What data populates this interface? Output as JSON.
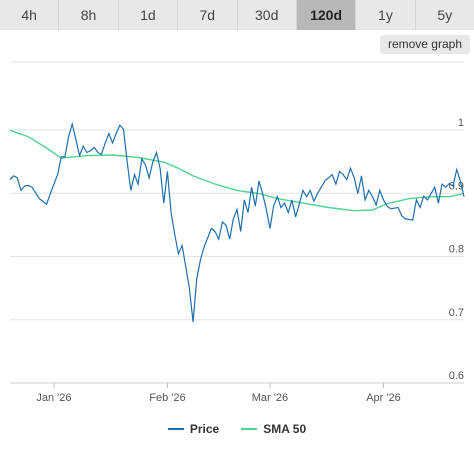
{
  "range_tabs": [
    {
      "label": "4h",
      "active": false
    },
    {
      "label": "8h",
      "active": false
    },
    {
      "label": "1d",
      "active": false
    },
    {
      "label": "7d",
      "active": false
    },
    {
      "label": "30d",
      "active": false
    },
    {
      "label": "120d",
      "active": true
    },
    {
      "label": "1y",
      "active": false
    },
    {
      "label": "5y",
      "active": false
    }
  ],
  "remove_graph_label": "remove graph",
  "colors": {
    "price": "#1f6fae",
    "sma": "#4fd38f",
    "grid": "#e3e3e3",
    "active_tab": "#b8b8b8",
    "tab": "#e8e8e8"
  },
  "legend": [
    {
      "label": "Price",
      "color": "#1f6fae"
    },
    {
      "label": "SMA 50",
      "color": "#4fd38f"
    }
  ],
  "chart_data": {
    "type": "line",
    "title": "",
    "xlabel": "",
    "ylabel": "",
    "x_domain": [
      "2025-12-20",
      "2026-04-23"
    ],
    "ylim": [
      0.6,
      1.0
    ],
    "y_ticks": [
      1.0,
      0.9,
      0.8,
      0.7,
      0.6
    ],
    "y_tick_labels": [
      "1",
      "0.9",
      "0.8",
      "0.7",
      "0.6"
    ],
    "x_ticks": [
      {
        "date": "2026-01-01",
        "label": "Jan '26"
      },
      {
        "date": "2026-02-01",
        "label": "Feb '26"
      },
      {
        "date": "2026-03-01",
        "label": "Mar '26"
      },
      {
        "date": "2026-04-01",
        "label": "Apr '26"
      }
    ],
    "grid": true,
    "legend_position": "bottom",
    "series": [
      {
        "name": "Price",
        "points": [
          [
            "2025-12-20",
            0.912
          ],
          [
            "2025-12-21",
            0.918
          ],
          [
            "2025-12-22",
            0.915
          ],
          [
            "2025-12-23",
            0.895
          ],
          [
            "2025-12-24",
            0.902
          ],
          [
            "2025-12-25",
            0.903
          ],
          [
            "2025-12-26",
            0.9
          ],
          [
            "2025-12-28",
            0.882
          ],
          [
            "2025-12-30",
            0.873
          ],
          [
            "2025-12-31",
            0.89
          ],
          [
            "2026-01-02",
            0.92
          ],
          [
            "2026-01-03",
            0.948
          ],
          [
            "2026-01-04",
            0.948
          ],
          [
            "2026-01-05",
            0.98
          ],
          [
            "2026-01-06",
            1.0
          ],
          [
            "2026-01-07",
            0.975
          ],
          [
            "2026-01-08",
            0.95
          ],
          [
            "2026-01-09",
            0.965
          ],
          [
            "2026-01-10",
            0.955
          ],
          [
            "2026-01-11",
            0.958
          ],
          [
            "2026-01-12",
            0.963
          ],
          [
            "2026-01-13",
            0.955
          ],
          [
            "2026-01-14",
            0.952
          ],
          [
            "2026-01-15",
            0.97
          ],
          [
            "2026-01-16",
            0.985
          ],
          [
            "2026-01-17",
            0.97
          ],
          [
            "2026-01-18",
            0.985
          ],
          [
            "2026-01-19",
            0.998
          ],
          [
            "2026-01-20",
            0.992
          ],
          [
            "2026-01-21",
            0.94
          ],
          [
            "2026-01-22",
            0.895
          ],
          [
            "2026-01-23",
            0.92
          ],
          [
            "2026-01-24",
            0.905
          ],
          [
            "2026-01-25",
            0.945
          ],
          [
            "2026-01-26",
            0.935
          ],
          [
            "2026-01-27",
            0.915
          ],
          [
            "2026-01-28",
            0.94
          ],
          [
            "2026-01-29",
            0.955
          ],
          [
            "2026-01-30",
            0.93
          ],
          [
            "2026-01-31",
            0.875
          ],
          [
            "2026-02-01",
            0.925
          ],
          [
            "2026-02-02",
            0.86
          ],
          [
            "2026-02-03",
            0.825
          ],
          [
            "2026-02-04",
            0.795
          ],
          [
            "2026-02-05",
            0.808
          ],
          [
            "2026-02-06",
            0.775
          ],
          [
            "2026-02-07",
            0.74
          ],
          [
            "2026-02-08",
            0.687
          ],
          [
            "2026-02-09",
            0.755
          ],
          [
            "2026-02-10",
            0.785
          ],
          [
            "2026-02-11",
            0.805
          ],
          [
            "2026-02-12",
            0.82
          ],
          [
            "2026-02-13",
            0.835
          ],
          [
            "2026-02-14",
            0.83
          ],
          [
            "2026-02-15",
            0.818
          ],
          [
            "2026-02-16",
            0.845
          ],
          [
            "2026-02-17",
            0.84
          ],
          [
            "2026-02-18",
            0.818
          ],
          [
            "2026-02-19",
            0.85
          ],
          [
            "2026-02-20",
            0.865
          ],
          [
            "2026-02-21",
            0.83
          ],
          [
            "2026-02-22",
            0.88
          ],
          [
            "2026-02-23",
            0.86
          ],
          [
            "2026-02-24",
            0.9
          ],
          [
            "2026-02-25",
            0.87
          ],
          [
            "2026-02-26",
            0.91
          ],
          [
            "2026-02-27",
            0.89
          ],
          [
            "2026-02-28",
            0.865
          ],
          [
            "2026-03-01",
            0.835
          ],
          [
            "2026-03-02",
            0.87
          ],
          [
            "2026-03-03",
            0.885
          ],
          [
            "2026-03-04",
            0.868
          ],
          [
            "2026-03-05",
            0.875
          ],
          [
            "2026-03-06",
            0.86
          ],
          [
            "2026-03-07",
            0.88
          ],
          [
            "2026-03-08",
            0.853
          ],
          [
            "2026-03-09",
            0.873
          ],
          [
            "2026-03-10",
            0.895
          ],
          [
            "2026-03-11",
            0.885
          ],
          [
            "2026-03-12",
            0.895
          ],
          [
            "2026-03-13",
            0.878
          ],
          [
            "2026-03-14",
            0.89
          ],
          [
            "2026-03-16",
            0.91
          ],
          [
            "2026-03-18",
            0.92
          ],
          [
            "2026-03-19",
            0.905
          ],
          [
            "2026-03-20",
            0.925
          ],
          [
            "2026-03-21",
            0.92
          ],
          [
            "2026-03-22",
            0.912
          ],
          [
            "2026-03-23",
            0.93
          ],
          [
            "2026-03-24",
            0.915
          ],
          [
            "2026-03-25",
            0.89
          ],
          [
            "2026-03-26",
            0.918
          ],
          [
            "2026-03-27",
            0.88
          ],
          [
            "2026-03-28",
            0.895
          ],
          [
            "2026-03-29",
            0.885
          ],
          [
            "2026-03-30",
            0.872
          ],
          [
            "2026-03-31",
            0.895
          ],
          [
            "2026-04-01",
            0.88
          ],
          [
            "2026-04-02",
            0.87
          ],
          [
            "2026-04-03",
            0.866
          ],
          [
            "2026-04-05",
            0.868
          ],
          [
            "2026-04-06",
            0.855
          ],
          [
            "2026-04-07",
            0.85
          ],
          [
            "2026-04-09",
            0.848
          ],
          [
            "2026-04-10",
            0.88
          ],
          [
            "2026-04-11",
            0.868
          ],
          [
            "2026-04-12",
            0.886
          ],
          [
            "2026-04-13",
            0.88
          ],
          [
            "2026-04-14",
            0.89
          ],
          [
            "2026-04-15",
            0.9
          ],
          [
            "2026-04-16",
            0.875
          ],
          [
            "2026-04-17",
            0.905
          ],
          [
            "2026-04-18",
            0.9
          ],
          [
            "2026-04-19",
            0.906
          ],
          [
            "2026-04-20",
            0.902
          ],
          [
            "2026-04-21",
            0.928
          ],
          [
            "2026-04-22",
            0.91
          ],
          [
            "2026-04-23",
            0.885
          ]
        ]
      },
      {
        "name": "SMA 50",
        "points": [
          [
            "2025-12-20",
            0.99
          ],
          [
            "2025-12-25",
            0.98
          ],
          [
            "2025-12-30",
            0.962
          ],
          [
            "2026-01-03",
            0.946
          ],
          [
            "2026-01-10",
            0.95
          ],
          [
            "2026-01-17",
            0.951
          ],
          [
            "2026-01-24",
            0.947
          ],
          [
            "2026-01-31",
            0.94
          ],
          [
            "2026-02-04",
            0.93
          ],
          [
            "2026-02-08",
            0.918
          ],
          [
            "2026-02-14",
            0.905
          ],
          [
            "2026-02-20",
            0.895
          ],
          [
            "2026-02-26",
            0.89
          ],
          [
            "2026-03-03",
            0.882
          ],
          [
            "2026-03-10",
            0.875
          ],
          [
            "2026-03-17",
            0.868
          ],
          [
            "2026-03-24",
            0.863
          ],
          [
            "2026-03-29",
            0.864
          ],
          [
            "2026-04-02",
            0.874
          ],
          [
            "2026-04-08",
            0.882
          ],
          [
            "2026-04-14",
            0.885
          ],
          [
            "2026-04-19",
            0.885
          ],
          [
            "2026-04-23",
            0.89
          ]
        ]
      }
    ]
  }
}
